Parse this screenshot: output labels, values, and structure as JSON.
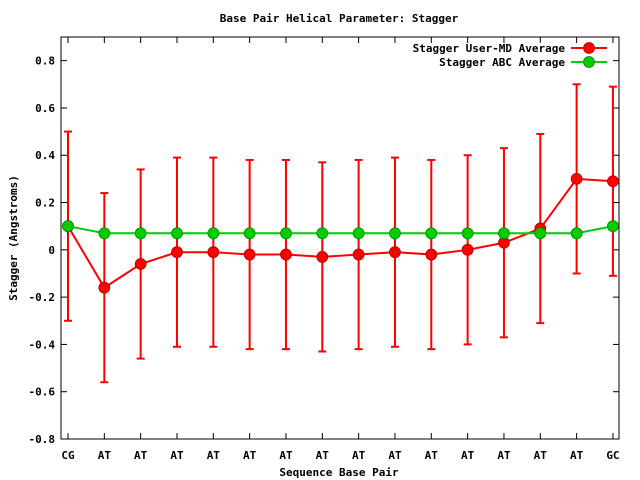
{
  "chart_data": {
    "type": "line",
    "title": "Base Pair Helical Parameter: Stagger",
    "xlabel": "Sequence Base Pair",
    "ylabel": "Stagger (Angstroms)",
    "categories": [
      "CG",
      "AT",
      "AT",
      "AT",
      "AT",
      "AT",
      "AT",
      "AT",
      "AT",
      "AT",
      "AT",
      "AT",
      "AT",
      "AT",
      "AT",
      "GC"
    ],
    "ylim": [
      -0.8,
      0.9
    ],
    "yticks": [
      -0.8,
      -0.6,
      -0.4,
      -0.2,
      0,
      0.2,
      0.4,
      0.6,
      0.8
    ],
    "ytick_labels": [
      "-0.8",
      "-0.6",
      "-0.4",
      "-0.2",
      "0",
      "0.2",
      "0.4",
      "0.6",
      "0.8"
    ],
    "grid": false,
    "legend_position": "top-right",
    "series": [
      {
        "name": "Stagger User-MD Average",
        "color": "#ff0000",
        "values": [
          0.1,
          -0.16,
          -0.06,
          -0.01,
          -0.01,
          -0.02,
          -0.02,
          -0.03,
          -0.02,
          -0.01,
          -0.02,
          0.0,
          0.03,
          0.09,
          0.3,
          0.29
        ],
        "error_low": [
          -0.3,
          -0.56,
          -0.46,
          -0.41,
          -0.41,
          -0.42,
          -0.42,
          -0.43,
          -0.42,
          -0.41,
          -0.42,
          -0.4,
          -0.37,
          -0.31,
          -0.1,
          -0.11
        ],
        "error_high": [
          0.5,
          0.24,
          0.34,
          0.39,
          0.39,
          0.38,
          0.38,
          0.37,
          0.38,
          0.39,
          0.38,
          0.4,
          0.43,
          0.49,
          0.7,
          0.69
        ]
      },
      {
        "name": "Stagger ABC Average",
        "color": "#00cc00",
        "values": [
          0.1,
          0.07,
          0.07,
          0.07,
          0.07,
          0.07,
          0.07,
          0.07,
          0.07,
          0.07,
          0.07,
          0.07,
          0.07,
          0.07,
          0.07,
          0.1
        ]
      }
    ]
  }
}
